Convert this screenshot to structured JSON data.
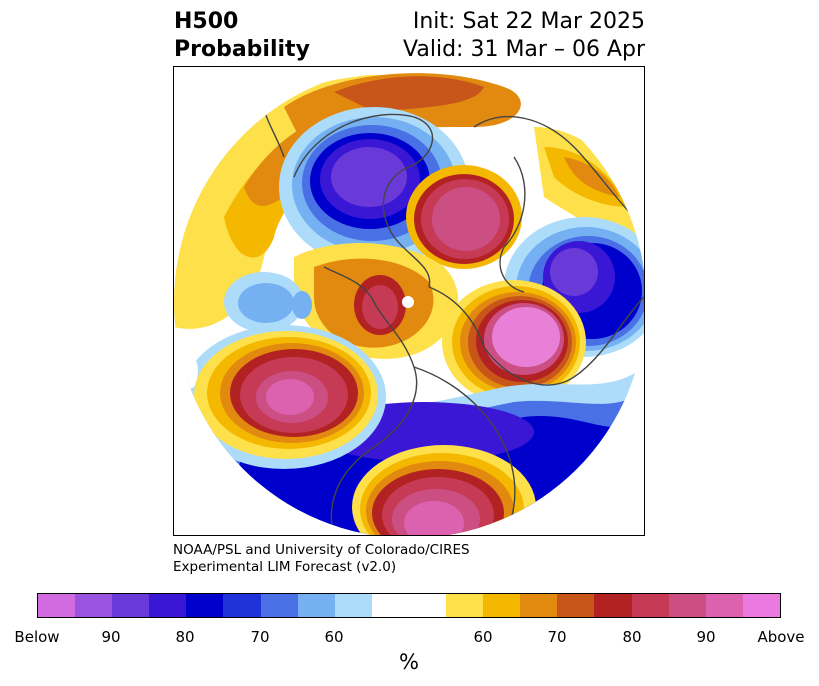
{
  "title": {
    "left_line1": "H500",
    "left_line2": "Probability",
    "right_line1": "Init: Sat 22 Mar 2025",
    "right_line2": "Valid: 31 Mar – 06 Apr"
  },
  "credit": {
    "line1": "NOAA/PSL and University of Colorado/CIRES",
    "line2": "Experimental LIM Forecast (v2.0)"
  },
  "colorbar": {
    "unit": "%",
    "ticks": [
      "Below",
      "90",
      "80",
      "70",
      "60",
      "60",
      "70",
      "80",
      "90",
      "Above"
    ],
    "colors": [
      "#d36be0",
      "#9a52e0",
      "#6a3ad8",
      "#3a17d4",
      "#0000cc",
      "#2033d8",
      "#4a70e6",
      "#74b0f2",
      "#acdcfa",
      "#ffffff",
      "#ffffff",
      "#fde04a",
      "#f4b800",
      "#e28a10",
      "#c8561a",
      "#b22222",
      "#c63a55",
      "#cc4f84",
      "#dc62b0",
      "#ea7ae0"
    ]
  },
  "map": {
    "projection": "north polar stereographic",
    "colors": {
      "above_strong": "#e880d8",
      "above_high": "#c8477a",
      "above_mid": "#b22222",
      "above_low": "#e08010",
      "above_weak": "#f4b800",
      "above_faint": "#fde04a",
      "below_strong": "#6a3ad8",
      "below_high": "#3a17d4",
      "below_mid": "#0000cc",
      "below_low": "#4a70e6",
      "below_weak": "#74b0f2",
      "below_faint": "#acdcfa",
      "coastline": "#444444"
    }
  }
}
